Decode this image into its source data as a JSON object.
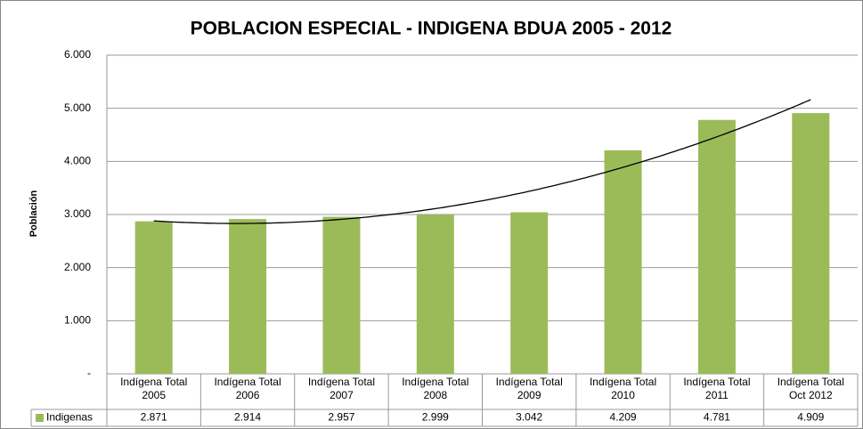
{
  "chart_data": {
    "type": "bar",
    "title": "POBLACION ESPECIAL - INDIGENA BDUA 2005 - 2012",
    "y_label": "Población",
    "categories": [
      [
        "Indígena Total",
        "2005"
      ],
      [
        "Indígena Total",
        "2006"
      ],
      [
        "Indígena Total",
        "2007"
      ],
      [
        "Indígena Total",
        "2008"
      ],
      [
        "Indígena Total",
        "2009"
      ],
      [
        "Indígena Total",
        "2010"
      ],
      [
        "Indígena Total",
        "2011"
      ],
      [
        "Indígena Total",
        "Oct 2012"
      ]
    ],
    "series": [
      {
        "name": "Indigenas",
        "color": "#9bbb59",
        "values": [
          2871,
          2914,
          2957,
          2999,
          3042,
          4209,
          4781,
          4909
        ],
        "value_labels": [
          "2.871",
          "2.914",
          "2.957",
          "2.999",
          "3.042",
          "4.209",
          "4.781",
          "4.909"
        ]
      }
    ],
    "ylim": [
      0,
      6000
    ],
    "yticks": [
      {
        "value": 0,
        "label": "-"
      },
      {
        "value": 1000,
        "label": "1.000"
      },
      {
        "value": 2000,
        "label": "2.000"
      },
      {
        "value": 3000,
        "label": "3.000"
      },
      {
        "value": 4000,
        "label": "4.000"
      },
      {
        "value": 5000,
        "label": "5.000"
      },
      {
        "value": 6000,
        "label": "6.000"
      }
    ],
    "grid": true,
    "data_table": true,
    "trendline": {
      "type": "polynomial",
      "order": 2,
      "color": "#000000"
    }
  }
}
